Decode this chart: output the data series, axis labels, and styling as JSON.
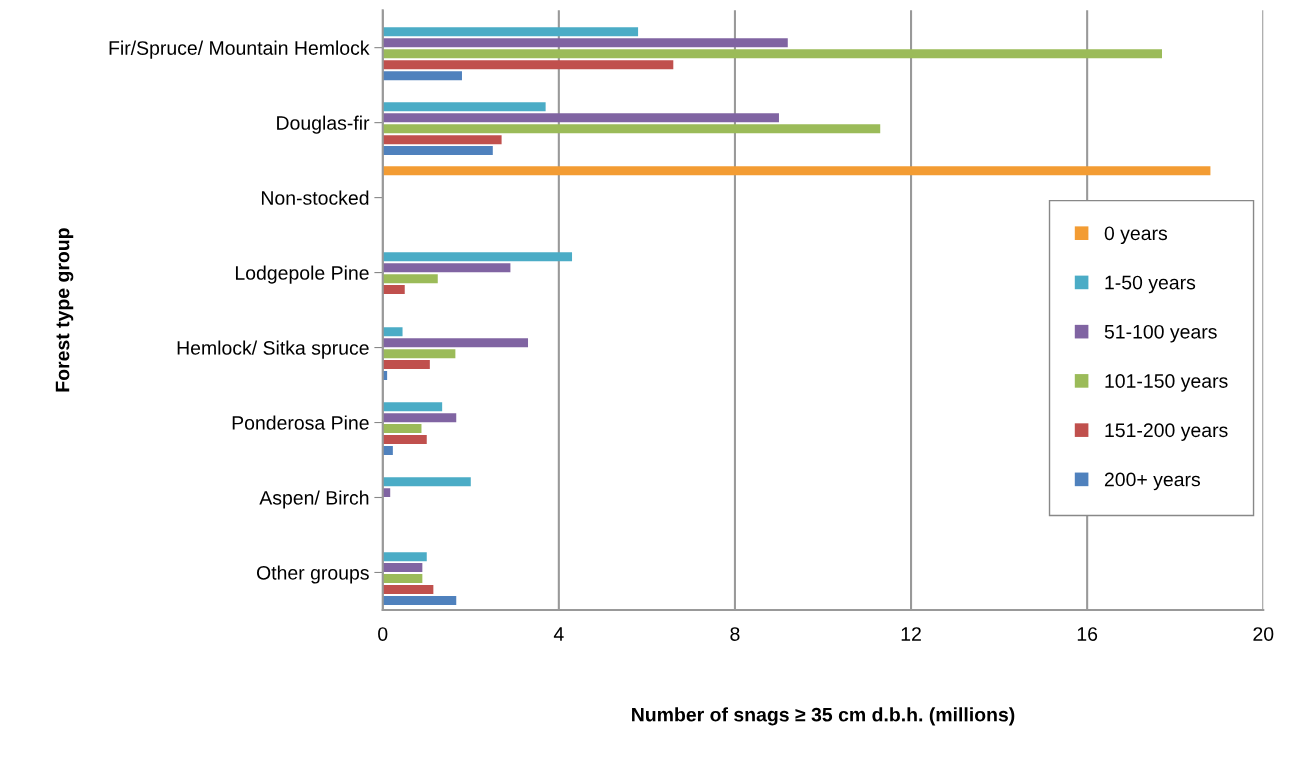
{
  "chart_data": {
    "type": "bar",
    "orientation": "horizontal",
    "xlabel": "Number of snags ≥ 35 cm d.b.h. (millions)",
    "ylabel": "Forest type group",
    "categories": [
      "Fir/Spruce/ Mountain Hemlock",
      "Douglas-fir",
      "Non-stocked",
      "Lodgepole Pine",
      "Hemlock/ Sitka spruce",
      "Ponderosa Pine",
      "Aspen/ Birch",
      "Other groups"
    ],
    "series": [
      {
        "name": "0 years",
        "color": "#f39c33",
        "values": [
          null,
          null,
          18.8,
          null,
          null,
          null,
          null,
          null
        ]
      },
      {
        "name": "1-50 years",
        "color": "#4bacc6",
        "values": [
          5.8,
          3.7,
          null,
          4.3,
          0.45,
          1.35,
          2.0,
          1.0
        ]
      },
      {
        "name": "51-100 years",
        "color": "#8064a2",
        "values": [
          9.2,
          9.0,
          null,
          2.9,
          3.3,
          1.67,
          0.17,
          0.9
        ]
      },
      {
        "name": "101-150 years",
        "color": "#9bbb59",
        "values": [
          17.7,
          11.3,
          null,
          1.25,
          1.65,
          0.88,
          null,
          0.9
        ]
      },
      {
        "name": "151-200 years",
        "color": "#c0504d",
        "values": [
          6.6,
          2.7,
          null,
          0.5,
          1.07,
          1.0,
          null,
          1.15
        ]
      },
      {
        "name": "200+ years",
        "color": "#4f81bd",
        "values": [
          1.8,
          2.5,
          null,
          null,
          0.1,
          0.23,
          null,
          1.67
        ]
      }
    ],
    "xlim": [
      0,
      20
    ],
    "xticks": [
      0,
      4,
      8,
      12,
      16,
      20
    ],
    "grid": "x",
    "legend": "right"
  }
}
